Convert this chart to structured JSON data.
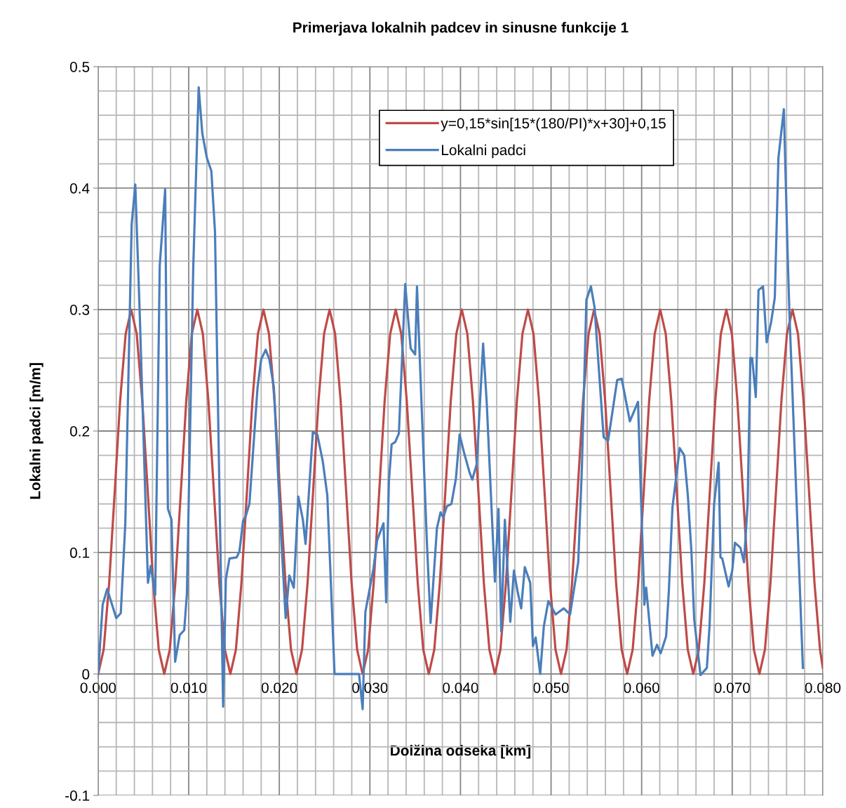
{
  "chart_data": {
    "type": "line",
    "title": "Primerjava lokalnih padcev in sinusne funkcije 1",
    "xlabel": "Dolžina odseka [km]",
    "ylabel": "Lokalni padci [m/m]",
    "xlim": [
      0,
      0.08
    ],
    "ylim": [
      -0.1,
      0.5
    ],
    "xticks": [
      {
        "value": 0,
        "label": "0.000"
      },
      {
        "value": 0.01,
        "label": "0.010"
      },
      {
        "value": 0.02,
        "label": "0.020"
      },
      {
        "value": 0.03,
        "label": "0.030"
      },
      {
        "value": 0.04,
        "label": "0.040"
      },
      {
        "value": 0.05,
        "label": "0.050"
      },
      {
        "value": 0.06,
        "label": "0.060"
      },
      {
        "value": 0.07,
        "label": "0.070"
      },
      {
        "value": 0.08,
        "label": "0.080"
      }
    ],
    "yticks": [
      {
        "value": -0.1,
        "label": "-0.1"
      },
      0,
      0.1,
      0.2,
      0.3,
      0.4,
      0.5
    ],
    "grid": true,
    "legend": "top right",
    "marker": "none",
    "line_style": "solid",
    "series": [
      {
        "name": "y=0,15*sin[15*(180/PI)*x+30]+0,15",
        "color": "#be4b48",
        "x": [
          0,
          0.00061,
          0.00122,
          0.00183,
          0.00243,
          0.00304,
          0.00365,
          0.00426,
          0.00487,
          0.00548,
          0.00608,
          0.00669,
          0.0073,
          0.00791,
          0.00852,
          0.00913,
          0.00973,
          0.01034,
          0.01095,
          0.01156,
          0.01217,
          0.01278,
          0.01338,
          0.01399,
          0.0146,
          0.01521,
          0.01582,
          0.01643,
          0.01703,
          0.01764,
          0.01825,
          0.01886,
          0.01947,
          0.02008,
          0.02068,
          0.02129,
          0.0219,
          0.02251,
          0.02312,
          0.02373,
          0.02433,
          0.02494,
          0.02555,
          0.02616,
          0.02677,
          0.02738,
          0.02798,
          0.02859,
          0.0292,
          0.02981,
          0.03042,
          0.03103,
          0.03163,
          0.03224,
          0.03285,
          0.03346,
          0.03407,
          0.03468,
          0.03528,
          0.03589,
          0.0365,
          0.03711,
          0.03772,
          0.03833,
          0.03893,
          0.03954,
          0.04015,
          0.04076,
          0.04137,
          0.04198,
          0.04258,
          0.04319,
          0.0438,
          0.04441,
          0.04502,
          0.04563,
          0.04623,
          0.04684,
          0.04745,
          0.04806,
          0.04867,
          0.04928,
          0.04988,
          0.05049,
          0.0511,
          0.05171,
          0.05232,
          0.05293,
          0.05353,
          0.05414,
          0.05475,
          0.05536,
          0.05597,
          0.05658,
          0.05718,
          0.05779,
          0.0584,
          0.05901,
          0.05962,
          0.06023,
          0.06083,
          0.06144,
          0.06205,
          0.06266,
          0.06327,
          0.06388,
          0.06448,
          0.06509,
          0.0657,
          0.06631,
          0.06692,
          0.06753,
          0.06813,
          0.06874,
          0.06935,
          0.06996,
          0.07057,
          0.07118,
          0.07178,
          0.07239,
          0.073,
          0.07361,
          0.07422,
          0.07483,
          0.07543,
          0.07604,
          0.07665,
          0.07726,
          0.07787,
          0.07848,
          0.07908,
          0.07969,
          0.08
        ],
        "values": [
          0,
          0.02,
          0.075,
          0.15,
          0.225,
          0.28,
          0.3,
          0.28,
          0.225,
          0.15,
          0.075,
          0.02,
          0,
          0.02,
          0.075,
          0.15,
          0.225,
          0.28,
          0.3,
          0.28,
          0.225,
          0.15,
          0.075,
          0.02,
          0,
          0.02,
          0.075,
          0.15,
          0.225,
          0.28,
          0.3,
          0.28,
          0.225,
          0.15,
          0.075,
          0.02,
          0,
          0.02,
          0.075,
          0.15,
          0.225,
          0.28,
          0.3,
          0.28,
          0.225,
          0.15,
          0.075,
          0.02,
          0,
          0.02,
          0.075,
          0.15,
          0.225,
          0.28,
          0.3,
          0.28,
          0.225,
          0.15,
          0.075,
          0.02,
          0,
          0.02,
          0.075,
          0.15,
          0.225,
          0.28,
          0.3,
          0.28,
          0.225,
          0.15,
          0.075,
          0.02,
          0,
          0.02,
          0.075,
          0.15,
          0.225,
          0.28,
          0.3,
          0.28,
          0.225,
          0.15,
          0.075,
          0.02,
          0,
          0.02,
          0.075,
          0.15,
          0.225,
          0.28,
          0.3,
          0.28,
          0.225,
          0.15,
          0.075,
          0.02,
          0,
          0.02,
          0.075,
          0.15,
          0.225,
          0.28,
          0.3,
          0.28,
          0.225,
          0.15,
          0.075,
          0.02,
          0,
          0.02,
          0.075,
          0.15,
          0.225,
          0.28,
          0.3,
          0.28,
          0.225,
          0.15,
          0.075,
          0.02,
          0,
          0.02,
          0.075,
          0.15,
          0.225,
          0.28,
          0.3,
          0.28,
          0.225,
          0.15,
          0.075,
          0.02,
          0.005
        ]
      },
      {
        "name": "Lokalni padci",
        "color": "#4a7ebb",
        "x": [
          0,
          0.0005,
          0.001,
          0.0015,
          0.002,
          0.0025,
          0.003,
          0.0037,
          0.0041,
          0.0046,
          0.0055,
          0.0058,
          0.0063,
          0.0068,
          0.0074,
          0.0077,
          0.0081,
          0.0085,
          0.009,
          0.0095,
          0.0098,
          0.0105,
          0.0111,
          0.0115,
          0.012,
          0.0125,
          0.0129,
          0.0138,
          0.0141,
          0.0145,
          0.0153,
          0.0156,
          0.016,
          0.0163,
          0.0167,
          0.0176,
          0.018,
          0.0185,
          0.0189,
          0.0194,
          0.0201,
          0.0207,
          0.0211,
          0.0216,
          0.0221,
          0.0226,
          0.0229,
          0.0237,
          0.0242,
          0.0248,
          0.0253,
          0.0261,
          0.0288,
          0.0292,
          0.0295,
          0.0304,
          0.0308,
          0.0315,
          0.0318,
          0.0321,
          0.0324,
          0.0328,
          0.0332,
          0.0339,
          0.0345,
          0.035,
          0.0352,
          0.0363,
          0.0367,
          0.0374,
          0.0378,
          0.0381,
          0.0385,
          0.039,
          0.0395,
          0.0399,
          0.0404,
          0.041,
          0.0413,
          0.0418,
          0.0425,
          0.0429,
          0.0438,
          0.0442,
          0.0445,
          0.0449,
          0.0455,
          0.0459,
          0.0463,
          0.0467,
          0.0471,
          0.0477,
          0.048,
          0.0483,
          0.0488,
          0.0492,
          0.0497,
          0.0505,
          0.0514,
          0.0521,
          0.053,
          0.0534,
          0.0539,
          0.0544,
          0.0548,
          0.0558,
          0.0563,
          0.0573,
          0.0578,
          0.0587,
          0.0596,
          0.0603,
          0.0605,
          0.0612,
          0.0617,
          0.0621,
          0.0627,
          0.063,
          0.0634,
          0.0642,
          0.0647,
          0.0651,
          0.0655,
          0.0658,
          0.0665,
          0.0672,
          0.0675,
          0.068,
          0.0685,
          0.0687,
          0.0689,
          0.0696,
          0.07,
          0.0703,
          0.0709,
          0.0713,
          0.0717,
          0.072,
          0.0722,
          0.0726,
          0.0729,
          0.0734,
          0.0738,
          0.0743,
          0.0747,
          0.0751,
          0.0757,
          0.0761,
          0.0763,
          0.0778
        ],
        "values": [
          0,
          0.057,
          0.07,
          0.058,
          0.046,
          0.05,
          0.124,
          0.37,
          0.403,
          0.295,
          0.075,
          0.089,
          0.065,
          0.336,
          0.399,
          0.136,
          0.127,
          0.01,
          0.032,
          0.036,
          0.066,
          0.335,
          0.483,
          0.445,
          0.425,
          0.414,
          0.364,
          -0.027,
          0.078,
          0.095,
          0.096,
          0.101,
          0.126,
          0.13,
          0.14,
          0.236,
          0.259,
          0.267,
          0.259,
          0.236,
          0.127,
          0.046,
          0.081,
          0.071,
          0.146,
          0.127,
          0.107,
          0.199,
          0.197,
          0.175,
          0.147,
          0,
          0,
          -0.029,
          0.051,
          0.087,
          0.11,
          0.124,
          0.059,
          0.159,
          0.189,
          0.191,
          0.198,
          0.321,
          0.268,
          0.263,
          0.319,
          0.107,
          0.042,
          0.12,
          0.133,
          0.129,
          0.138,
          0.14,
          0.161,
          0.197,
          0.182,
          0.166,
          0.16,
          0.173,
          0.272,
          0.223,
          0.076,
          0.136,
          0.035,
          0.127,
          0.043,
          0.085,
          0.068,
          0.054,
          0.088,
          0.075,
          0.023,
          0.03,
          0,
          0.039,
          0.06,
          0.049,
          0.054,
          0.049,
          0.092,
          0.169,
          0.308,
          0.319,
          0.302,
          0.195,
          0.192,
          0.242,
          0.243,
          0.208,
          0.224,
          0.057,
          0.071,
          0.015,
          0.024,
          0.017,
          0.031,
          0.068,
          0.137,
          0.186,
          0.18,
          0.147,
          0.1,
          0.045,
          -0.001,
          0.005,
          0.04,
          0.14,
          0.174,
          0.096,
          0.095,
          0.072,
          0.085,
          0.108,
          0.104,
          0.092,
          0.14,
          0.26,
          0.26,
          0.228,
          0.316,
          0.319,
          0.273,
          0.29,
          0.31,
          0.425,
          0.465,
          0.35,
          0.3,
          0.005
        ]
      }
    ]
  }
}
